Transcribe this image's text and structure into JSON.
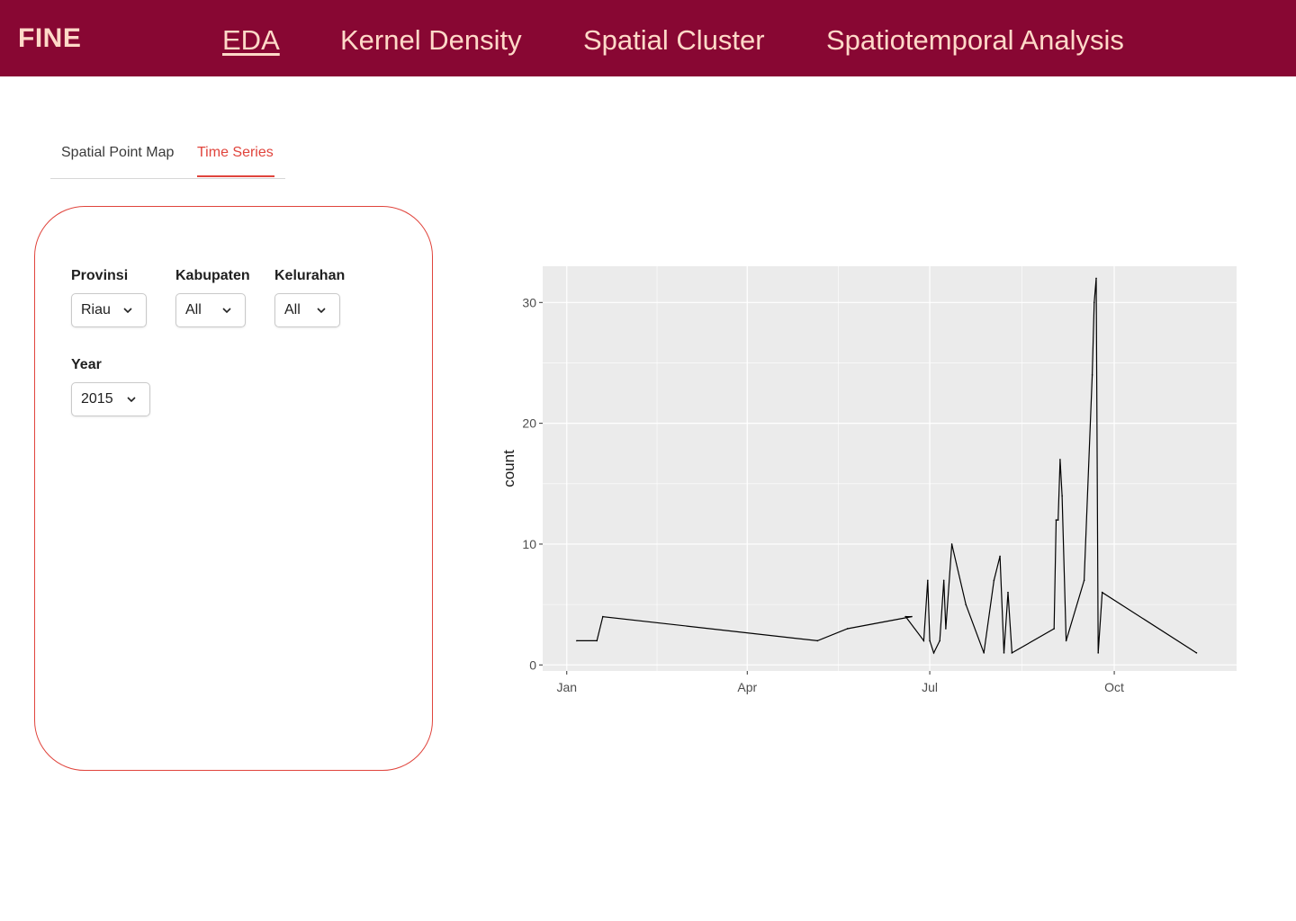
{
  "header": {
    "brand": "FINE",
    "nav": [
      {
        "label": "EDA",
        "active": true
      },
      {
        "label": "Kernel Density",
        "active": false
      },
      {
        "label": "Spatial Cluster",
        "active": false
      },
      {
        "label": "Spatiotemporal Analysis",
        "active": false
      }
    ]
  },
  "tabs": [
    {
      "label": "Spatial Point Map",
      "active": false
    },
    {
      "label": "Time Series",
      "active": true
    }
  ],
  "filters": {
    "provinsi": {
      "label": "Provinsi",
      "value": "Riau"
    },
    "kabupaten": {
      "label": "Kabupaten",
      "value": "All"
    },
    "kelurahan": {
      "label": "Kelurahan",
      "value": "All"
    },
    "year": {
      "label": "Year",
      "value": "2015"
    }
  },
  "colors": {
    "header_bg": "#880733",
    "header_text": "#ffd9c8",
    "accent": "#e0443c",
    "plot_bg": "#ebebeb",
    "grid": "#ffffff",
    "line": "#000000"
  },
  "chart_data": {
    "type": "line",
    "title": "",
    "xlabel": "",
    "ylabel": "count",
    "x_ticks": [
      "Jan",
      "Apr",
      "Jul",
      "Oct"
    ],
    "x_tick_dates": [
      "2015-01-01",
      "2015-04-01",
      "2015-07-01",
      "2015-10-01"
    ],
    "xlim": [
      "2014-12-20",
      "2015-12-01"
    ],
    "y_ticks": [
      0,
      10,
      20,
      30
    ],
    "ylim": [
      -0.5,
      33
    ],
    "grid": true,
    "series": [
      {
        "values": [
          {
            "x": "2015-01-06",
            "y": 2
          },
          {
            "x": "2015-01-16",
            "y": 2
          },
          {
            "x": "2015-01-19",
            "y": 4
          },
          {
            "x": "2015-05-06",
            "y": 2
          },
          {
            "x": "2015-05-21",
            "y": 3
          },
          {
            "x": "2015-06-22",
            "y": 4
          },
          {
            "x": "2015-06-19",
            "y": 4
          },
          {
            "x": "2015-06-28",
            "y": 2
          },
          {
            "x": "2015-06-30",
            "y": 7
          },
          {
            "x": "2015-07-01",
            "y": 2
          },
          {
            "x": "2015-07-03",
            "y": 1
          },
          {
            "x": "2015-07-06",
            "y": 2
          },
          {
            "x": "2015-07-08",
            "y": 7
          },
          {
            "x": "2015-07-09",
            "y": 3
          },
          {
            "x": "2015-07-12",
            "y": 10
          },
          {
            "x": "2015-07-19",
            "y": 5
          },
          {
            "x": "2015-07-28",
            "y": 1
          },
          {
            "x": "2015-08-02",
            "y": 7
          },
          {
            "x": "2015-08-05",
            "y": 9
          },
          {
            "x": "2015-08-07",
            "y": 1
          },
          {
            "x": "2015-08-09",
            "y": 6
          },
          {
            "x": "2015-08-11",
            "y": 1
          },
          {
            "x": "2015-09-01",
            "y": 3
          },
          {
            "x": "2015-09-02",
            "y": 12
          },
          {
            "x": "2015-09-03",
            "y": 12
          },
          {
            "x": "2015-09-04",
            "y": 17
          },
          {
            "x": "2015-09-05",
            "y": 14
          },
          {
            "x": "2015-09-07",
            "y": 2
          },
          {
            "x": "2015-09-16",
            "y": 7
          },
          {
            "x": "2015-09-20",
            "y": 24
          },
          {
            "x": "2015-09-21",
            "y": 30
          },
          {
            "x": "2015-09-22",
            "y": 32
          },
          {
            "x": "2015-09-23",
            "y": 1
          },
          {
            "x": "2015-09-25",
            "y": 6
          },
          {
            "x": "2015-11-11",
            "y": 1
          }
        ]
      }
    ]
  }
}
